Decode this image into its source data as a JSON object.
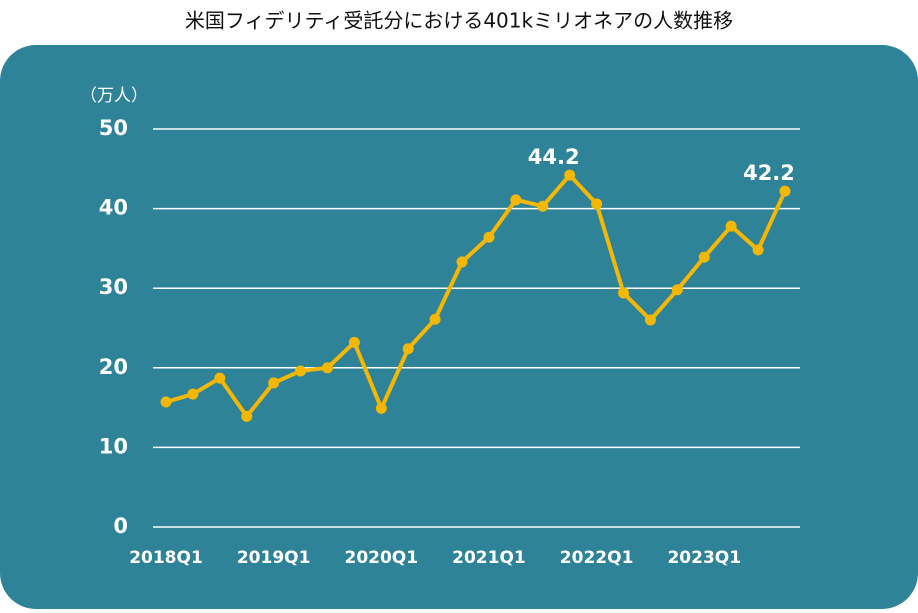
{
  "chart_data": {
    "type": "line",
    "title": "米国フィデリティ受託分における401kミリオネアの人数推移",
    "y_label": "（万人）",
    "categories": [
      "2018Q1",
      null,
      null,
      null,
      "2019Q1",
      null,
      null,
      null,
      "2020Q1",
      null,
      null,
      null,
      "2021Q1",
      null,
      null,
      null,
      "2022Q1",
      null,
      null,
      null,
      "2023Q1",
      null,
      null,
      null
    ],
    "series": [
      {
        "name": "401kミリオネア",
        "color": "#f5b700",
        "values": [
          15.7,
          16.7,
          18.7,
          13.9,
          18.1,
          19.6,
          20.0,
          23.2,
          14.9,
          22.4,
          26.1,
          33.3,
          36.4,
          41.1,
          40.3,
          44.2,
          40.6,
          29.4,
          26.0,
          29.8,
          33.9,
          37.8,
          34.8,
          42.2
        ]
      }
    ],
    "labeled_points": [
      15,
      23
    ],
    "ylim": [
      0,
      50
    ],
    "yticks": [
      0,
      10,
      20,
      30,
      40,
      50
    ],
    "grid": true
  }
}
